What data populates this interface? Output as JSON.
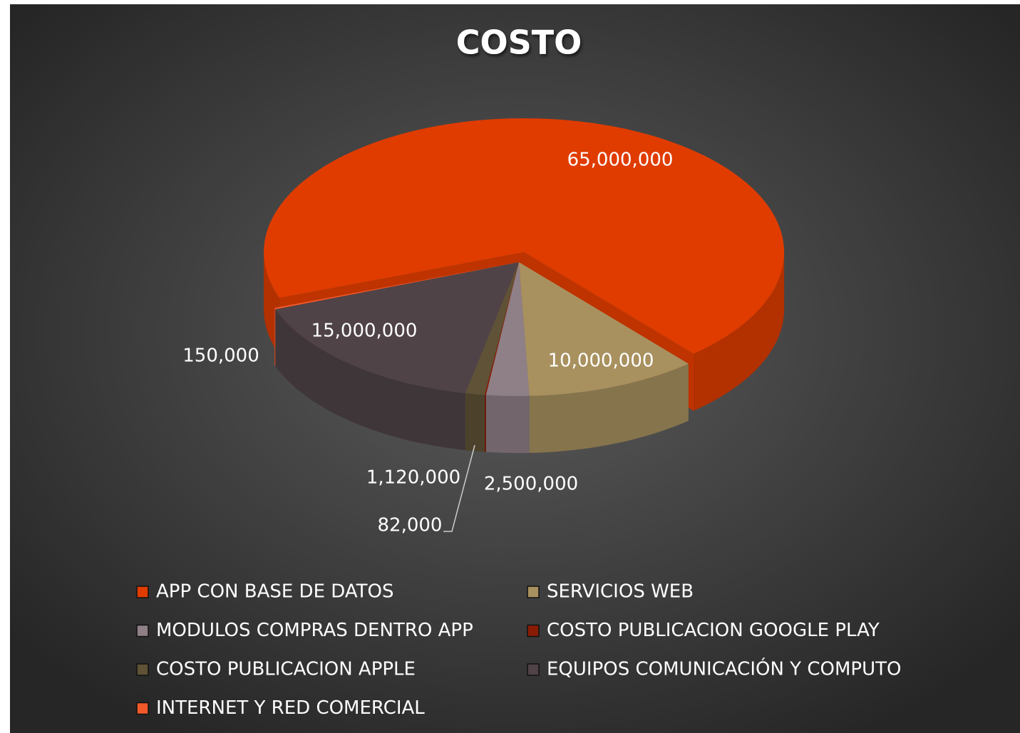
{
  "chart_data": {
    "type": "pie",
    "title": "COSTO",
    "categories": [
      "APP CON BASE DE DATOS",
      "SERVICIOS WEB",
      "MODULOS COMPRAS DENTRO APP",
      "COSTO PUBLICACION GOOGLE PLAY",
      "COSTO PUBLICACION APPLE",
      "EQUIPOS COMUNICACIÓN Y COMPUTO",
      "INTERNET Y RED COMERCIAL"
    ],
    "values": [
      65000000,
      10000000,
      2500000,
      82000,
      1120000,
      15000000,
      150000
    ],
    "value_labels": [
      "65,000,000",
      "10,000,000",
      "2,500,000",
      "82,000",
      "1,120,000",
      "15,000,000",
      "150,000"
    ],
    "colors": [
      "#e03c00",
      "#a8915f",
      "#8f8087",
      "#8a1c05",
      "#5f5236",
      "#4f4347",
      "#f2592a"
    ]
  }
}
